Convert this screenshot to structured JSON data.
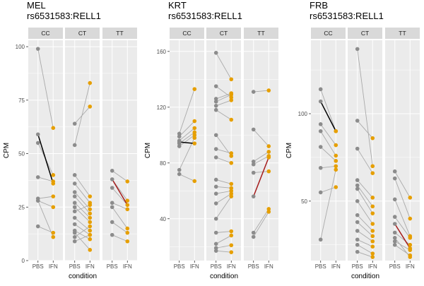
{
  "colors": {
    "panel_bg": "#ebebeb",
    "grid": "#ffffff",
    "strip_bg": "#d9d9d9",
    "pbs_point": "#8c8c8c",
    "ifn_point": "#e69f00",
    "pair_line": "#aaaaaa",
    "median_line_up_or_flat": "#000000",
    "median_line_down": "#a61c1c"
  },
  "chart_data": [
    {
      "type": "scatter",
      "title": "MEL",
      "subtitle": "rs6531583:RELL1",
      "xlabel": "condition",
      "ylabel": "CPM",
      "x_categories": [
        "PBS",
        "IFN"
      ],
      "ylim": [
        0,
        103
      ],
      "yticks": [
        0,
        25,
        50,
        75,
        100
      ],
      "facets": [
        {
          "label": "CC",
          "pairs": [
            [
              99,
              62
            ],
            [
              59,
              36
            ],
            [
              55,
              40
            ],
            [
              39,
              37
            ],
            [
              29,
              30
            ],
            [
              28,
              25
            ],
            [
              16,
              13
            ],
            [
              28,
              11
            ]
          ],
          "highlight": {
            "from": 59,
            "to": 36,
            "color": "#000000"
          }
        },
        {
          "label": "CT",
          "pairs": [
            [
              64,
              72
            ],
            [
              54,
              83
            ],
            [
              40,
              30
            ],
            [
              36,
              27
            ],
            [
              32,
              24
            ],
            [
              30,
              22
            ],
            [
              27,
              20
            ],
            [
              25,
              18
            ],
            [
              23,
              26
            ],
            [
              20,
              14
            ],
            [
              17,
              12
            ],
            [
              14,
              10
            ],
            [
              13,
              5
            ],
            [
              11,
              16
            ],
            [
              9,
              12
            ]
          ],
          "highlight": null
        },
        {
          "label": "TT",
          "pairs": [
            [
              42,
              37
            ],
            [
              38,
              28
            ],
            [
              34,
              26
            ],
            [
              27,
              24
            ],
            [
              25,
              15
            ],
            [
              18,
              13
            ],
            [
              12,
              9
            ]
          ],
          "highlight": {
            "from": 38,
            "to": 26,
            "color": "#a61c1c"
          }
        }
      ]
    },
    {
      "type": "scatter",
      "title": "KRT",
      "subtitle": "rs6531583:RELL1",
      "xlabel": "condition",
      "ylabel": "CPM",
      "x_categories": [
        "PBS",
        "IFN"
      ],
      "ylim": [
        10,
        168
      ],
      "yticks": [
        40,
        80,
        120,
        160
      ],
      "facets": [
        {
          "label": "CC",
          "pairs": [
            [
              101,
              133
            ],
            [
              99,
              110
            ],
            [
              96,
              105
            ],
            [
              95,
              94
            ],
            [
              94,
              102
            ],
            [
              92,
              100
            ],
            [
              75,
              98
            ],
            [
              72,
              67
            ]
          ],
          "highlight": {
            "from": 95,
            "to": 94,
            "color": "#000000"
          }
        },
        {
          "label": "CT",
          "pairs": [
            [
              159,
              140
            ],
            [
              135,
              127
            ],
            [
              126,
              130
            ],
            [
              124,
              129
            ],
            [
              121,
              125
            ],
            [
              118,
              111
            ],
            [
              100,
              85
            ],
            [
              90,
              87
            ],
            [
              84,
              80
            ],
            [
              68,
              65
            ],
            [
              63,
              62
            ],
            [
              58,
              60
            ],
            [
              51,
              58
            ],
            [
              40,
              56
            ],
            [
              30,
              31
            ],
            [
              22,
              28
            ],
            [
              19,
              21
            ],
            [
              17,
              16
            ]
          ],
          "highlight": null
        },
        {
          "label": "TT",
          "pairs": [
            [
              131,
              132
            ],
            [
              104,
              92
            ],
            [
              81,
              88
            ],
            [
              79,
              85
            ],
            [
              73,
              74
            ],
            [
              56,
              84
            ],
            [
              30,
              47
            ],
            [
              27,
              45
            ]
          ],
          "highlight": {
            "from": 56,
            "to": 84,
            "color": "#a61c1c"
          }
        }
      ]
    },
    {
      "type": "scatter",
      "title": "FRB",
      "subtitle": "rs6531583:RELL1",
      "xlabel": "condition",
      "ylabel": "CPM",
      "x_categories": [
        "PBS",
        "IFN"
      ],
      "ylim": [
        16,
        142
      ],
      "yticks": [
        50,
        100
      ],
      "facets": [
        {
          "label": "CC",
          "pairs": [
            [
              114,
              90
            ],
            [
              107,
              90
            ],
            [
              94,
              82
            ],
            [
              90,
              76
            ],
            [
              81,
              73
            ],
            [
              69,
              70
            ],
            [
              55,
              58
            ],
            [
              28,
              68
            ]
          ],
          "highlight": {
            "from": 107,
            "to": 90,
            "color": "#000000"
          }
        },
        {
          "label": "CT",
          "pairs": [
            [
              137,
              70
            ],
            [
              96,
              86
            ],
            [
              80,
              66
            ],
            [
              62,
              52
            ],
            [
              59,
              47
            ],
            [
              57,
              43
            ],
            [
              50,
              37
            ],
            [
              42,
              33
            ],
            [
              38,
              30
            ],
            [
              33,
              27
            ],
            [
              28,
              24
            ],
            [
              25,
              20
            ],
            [
              21,
              18
            ]
          ],
          "highlight": null
        },
        {
          "label": "TT",
          "pairs": [
            [
              67,
              52
            ],
            [
              63,
              40
            ],
            [
              51,
              30
            ],
            [
              41,
              29
            ],
            [
              37,
              23
            ],
            [
              32,
              25
            ],
            [
              29,
              18
            ],
            [
              27,
              22
            ],
            [
              25,
              19
            ]
          ],
          "highlight": {
            "from": 37,
            "to": 23,
            "color": "#a61c1c"
          }
        }
      ]
    }
  ]
}
